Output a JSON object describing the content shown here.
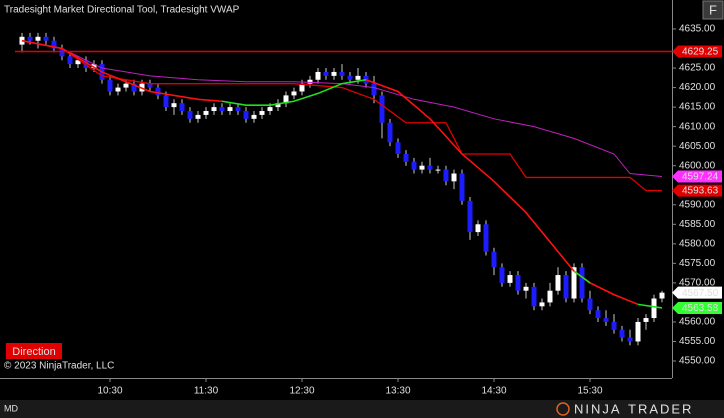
{
  "title": "Tradesight Market Directional Tool, Tradesight VWAP",
  "corner_button": "F",
  "badge": "Direction",
  "copyright": "© 2023 NinjaTrader, LLC",
  "status": "MD",
  "logo": {
    "first": "NINJA",
    "second": "TRADER"
  },
  "chart_data": {
    "type": "candlestick",
    "up_color": "#ffffff",
    "down_color": "#1c1cff",
    "wick_color": "#c8c8c8",
    "xlim": [
      561.25,
      981.25
    ],
    "ylim": [
      4545.65,
      4642.42
    ],
    "xticks": [
      {
        "value": 630,
        "label": "10:30"
      },
      {
        "value": 690,
        "label": "11:30"
      },
      {
        "value": 750,
        "label": "12:30"
      },
      {
        "value": 810,
        "label": "13:30"
      },
      {
        "value": 870,
        "label": "14:30"
      },
      {
        "value": 930,
        "label": "15:30"
      }
    ],
    "yticks": [
      {
        "value": 4635,
        "label": "4635.00"
      },
      {
        "value": 4625,
        "label": "4625.00"
      },
      {
        "value": 4620,
        "label": "4620.00"
      },
      {
        "value": 4615,
        "label": "4615.00"
      },
      {
        "value": 4610,
        "label": "4610.00"
      },
      {
        "value": 4605,
        "label": "4605.00"
      },
      {
        "value": 4600,
        "label": "4600.00"
      },
      {
        "value": 4590,
        "label": "4590.00"
      },
      {
        "value": 4585,
        "label": "4585.00"
      },
      {
        "value": 4580,
        "label": "4580.00"
      },
      {
        "value": 4575,
        "label": "4575.00"
      },
      {
        "value": 4570,
        "label": "4570.00"
      },
      {
        "value": 4560,
        "label": "4560.00"
      },
      {
        "value": 4555,
        "label": "4555.00"
      },
      {
        "value": 4550,
        "label": "4550.00"
      }
    ],
    "x": [
      575,
      580,
      585,
      590,
      595,
      600,
      605,
      610,
      615,
      620,
      625,
      630,
      635,
      640,
      645,
      650,
      655,
      660,
      665,
      670,
      675,
      680,
      685,
      690,
      695,
      700,
      705,
      710,
      715,
      720,
      725,
      730,
      735,
      740,
      745,
      750,
      755,
      760,
      765,
      770,
      775,
      780,
      785,
      790,
      795,
      800,
      805,
      810,
      815,
      820,
      825,
      830,
      835,
      840,
      845,
      850,
      855,
      860,
      865,
      870,
      875,
      880,
      885,
      890,
      895,
      900,
      905,
      910,
      915,
      920,
      925,
      930,
      935,
      940,
      945,
      950,
      955,
      960,
      965,
      970,
      975
    ],
    "open": [
      4631,
      4633,
      4632,
      4633,
      4632,
      4630,
      4628,
      4626,
      4627,
      4625,
      4626,
      4622,
      4619,
      4620,
      4621,
      4619,
      4621,
      4620,
      4618,
      4615,
      4616,
      4614,
      4612,
      4613,
      4614,
      4615,
      4614,
      4615,
      4614,
      4612,
      4613,
      4614,
      4615,
      4616,
      4618,
      4619,
      4621,
      4622,
      4624,
      4623,
      4624,
      4623,
      4622,
      4623,
      4621,
      4618,
      4611,
      4606,
      4603,
      4601,
      4599,
      4600,
      4599,
      4599,
      4596,
      4598,
      4591,
      4583,
      4585,
      4578,
      4574,
      4570,
      4572,
      4568,
      4569,
      4564,
      4565,
      4568,
      4572,
      4566,
      4574,
      4566,
      4563,
      4561,
      4560,
      4558,
      4556,
      4555,
      4560,
      4561,
      4566
    ],
    "high": [
      4634,
      4634,
      4634,
      4634,
      4633,
      4631,
      4629,
      4628,
      4628,
      4627,
      4627,
      4623,
      4621,
      4622,
      4622,
      4622,
      4622,
      4621,
      4619,
      4617,
      4617,
      4615,
      4614,
      4615,
      4616,
      4616,
      4616,
      4616,
      4615,
      4614,
      4615,
      4616,
      4617,
      4619,
      4620,
      4622,
      4623,
      4625,
      4625,
      4625,
      4626,
      4624,
      4625,
      4624,
      4623,
      4619,
      4612,
      4607,
      4604,
      4602,
      4601,
      4602,
      4600,
      4600,
      4599,
      4599,
      4592,
      4586,
      4586,
      4579,
      4575,
      4573,
      4573,
      4570,
      4570,
      4566,
      4570,
      4574,
      4573,
      4575,
      4575,
      4568,
      4564,
      4563,
      4562,
      4559,
      4558,
      4561,
      4562,
      4567,
      4568
    ],
    "low": [
      4629,
      4631,
      4630,
      4631,
      4629,
      4627,
      4625,
      4625,
      4624,
      4624,
      4621,
      4618,
      4618,
      4619,
      4618,
      4618,
      4619,
      4617,
      4614,
      4613,
      4613,
      4611,
      4611,
      4612,
      4613,
      4613,
      4613,
      4613,
      4611,
      4611,
      4612,
      4613,
      4614,
      4615,
      4617,
      4618,
      4620,
      4621,
      4622,
      4622,
      4622,
      4621,
      4621,
      4620,
      4616,
      4607,
      4605,
      4602,
      4600,
      4598,
      4598,
      4598,
      4598,
      4595,
      4594,
      4590,
      4581,
      4582,
      4577,
      4572,
      4569,
      4569,
      4567,
      4566,
      4563,
      4563,
      4564,
      4567,
      4565,
      4565,
      4565,
      4562,
      4560,
      4559,
      4557,
      4555,
      4554,
      4554,
      4558,
      4560,
      4565
    ],
    "close": [
      4633,
      4632,
      4633,
      4632,
      4630,
      4628,
      4626,
      4627,
      4625,
      4626,
      4622,
      4619,
      4620,
      4621,
      4619,
      4621,
      4620,
      4618,
      4615,
      4616,
      4614,
      4612,
      4613,
      4614,
      4615,
      4614,
      4615,
      4614,
      4612,
      4613,
      4614,
      4615,
      4616,
      4618,
      4619,
      4621,
      4622,
      4624,
      4623,
      4624,
      4623,
      4622,
      4623,
      4621,
      4618,
      4611,
      4606,
      4603,
      4601,
      4599,
      4600,
      4599,
      4599,
      4596,
      4598,
      4591,
      4583,
      4585,
      4578,
      4574,
      4570,
      4572,
      4568,
      4569,
      4564,
      4565,
      4568,
      4572,
      4566,
      4574,
      4566,
      4563,
      4561,
      4560,
      4558,
      4556,
      4555,
      4560,
      4561,
      4566,
      4567.5
    ],
    "lines": [
      {
        "color": "#c020c0",
        "width": 1,
        "x": [
          575,
          600,
          625,
          655,
          685,
          715,
          745,
          775,
          795,
          820,
          845,
          870,
          895,
          920,
          945,
          955,
          975
        ],
        "values": [
          4632,
          4630,
          4625,
          4623,
          4622,
          4621.5,
          4621.5,
          4621,
          4620,
          4617,
          4615,
          4612,
          4610,
          4607,
          4603,
          4598,
          4597.24
        ]
      },
      {
        "color": "#e00000",
        "width": 1.3,
        "x": [
          575,
          600,
          625,
          655,
          745,
          775,
          795,
          815,
          840,
          850,
          880,
          890,
          955,
          965,
          975
        ],
        "values": [
          4632,
          4630,
          4623,
          4621,
          4621,
          4620,
          4617,
          4611,
          4611,
          4603,
          4603,
          4597,
          4597,
          4593.63,
          4593.63
        ]
      },
      {
        "color": "#ff1010",
        "width": 1.6,
        "x": [
          575,
          600,
          625,
          655,
          685,
          700,
          715,
          730,
          745,
          760,
          775,
          790,
          810,
          830,
          850,
          870,
          890,
          910,
          920,
          930,
          945,
          960,
          975
        ],
        "values": [
          4632,
          4630,
          4624,
          4619,
          4617,
          4616.5,
          null,
          null,
          null,
          null,
          null,
          4622,
          4619,
          4612,
          4603,
          4596,
          4588,
          4578,
          4573,
          4570,
          4567,
          4564.5,
          null
        ]
      },
      {
        "color": "#20e020",
        "width": 1.6,
        "x": [
          575,
          600,
          625,
          655,
          685,
          700,
          715,
          730,
          745,
          760,
          775,
          790,
          810,
          830,
          850,
          870,
          890,
          910,
          920,
          930,
          945,
          960,
          975
        ],
        "values": [
          null,
          null,
          null,
          null,
          null,
          4616.5,
          4615.5,
          4615.5,
          4616.5,
          4618.5,
          4621,
          4622,
          null,
          null,
          null,
          null,
          null,
          null,
          4573,
          4570,
          null,
          4564.5,
          4563.58
        ]
      }
    ],
    "price_labels": [
      {
        "value": 4629.25,
        "color": "#e00000",
        "text_color": "#ffffff",
        "draw_line": true
      },
      {
        "value": 4597.24,
        "color": "#ff30ff",
        "text_color": "#ffffff",
        "draw_line": false
      },
      {
        "value": 4593.63,
        "color": "#e00000",
        "text_color": "#ffffff",
        "draw_line": false
      },
      {
        "value": 4567.5,
        "label": "4567.50",
        "color": "#ffffff",
        "text_color": "#000000",
        "draw_line": false
      },
      {
        "value": 4563.58,
        "color": "#30ff30",
        "text_color": "#000000",
        "draw_line": false
      }
    ]
  }
}
